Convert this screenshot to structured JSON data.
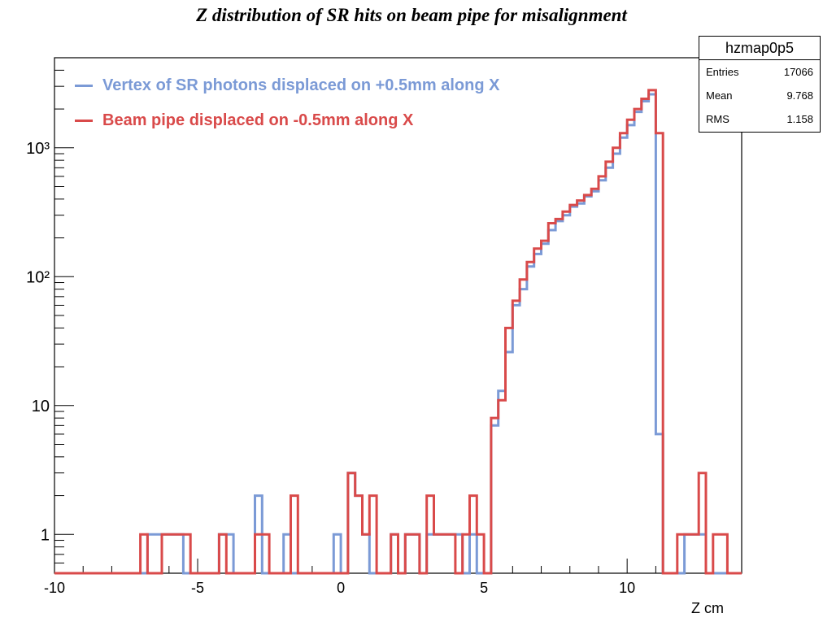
{
  "title": "Z distribution of SR hits on beam pipe for misalignment",
  "stats": {
    "name": "hzmap0p5",
    "rows": [
      {
        "label": "Entries",
        "value": "17066"
      },
      {
        "label": "Mean",
        "value": "9.768"
      },
      {
        "label": "RMS",
        "value": "1.158"
      }
    ]
  },
  "legend": [
    {
      "label": "Vertex of SR photons displaced on +0.5mm along X",
      "color": "#7b9ad6"
    },
    {
      "label": "Beam pipe displaced on -0.5mm along X",
      "color": "#d94a4a"
    }
  ],
  "chart_data": {
    "type": "histogram",
    "title": "Z distribution of SR hits on beam pipe for misalignment",
    "xlabel": "Z cm",
    "ylabel": "",
    "xlim": [
      -10,
      14
    ],
    "ylim": [
      0.5,
      5000
    ],
    "yscale": "log",
    "xticks": [
      -10,
      -5,
      0,
      5,
      10
    ],
    "xtick_labels": [
      "-10",
      "-5",
      "0",
      "5",
      "10"
    ],
    "yticks": [
      1,
      10,
      100,
      1000
    ],
    "ytick_labels": [
      "1",
      "10",
      "10²",
      "10³"
    ],
    "legend_position": "top-left",
    "series": [
      {
        "name": "Vertex of SR photons displaced on +0.5mm along X",
        "color": "#7b9ad6",
        "points": [
          [
            -10,
            0
          ],
          [
            -6.75,
            1
          ],
          [
            -6.25,
            1
          ],
          [
            -5.5,
            0
          ],
          [
            -4.25,
            1
          ],
          [
            -3.75,
            0
          ],
          [
            -3,
            2
          ],
          [
            -2.75,
            0
          ],
          [
            -2,
            1
          ],
          [
            -1.75,
            0
          ],
          [
            -0.25,
            1
          ],
          [
            0,
            0
          ],
          [
            0.25,
            3
          ],
          [
            0.5,
            2
          ],
          [
            0.75,
            1
          ],
          [
            1,
            0
          ],
          [
            1.75,
            1
          ],
          [
            2,
            0
          ],
          [
            2.25,
            1
          ],
          [
            2.75,
            0
          ],
          [
            3,
            1
          ],
          [
            3.25,
            1
          ],
          [
            3.5,
            1
          ],
          [
            4.25,
            0
          ],
          [
            4.5,
            1
          ],
          [
            4.75,
            0
          ],
          [
            5.25,
            7
          ],
          [
            5.5,
            13
          ],
          [
            5.75,
            26
          ],
          [
            6,
            60
          ],
          [
            6.25,
            80
          ],
          [
            6.5,
            120
          ],
          [
            6.75,
            150
          ],
          [
            7,
            180
          ],
          [
            7.25,
            230
          ],
          [
            7.5,
            270
          ],
          [
            7.75,
            300
          ],
          [
            8,
            350
          ],
          [
            8.25,
            370
          ],
          [
            8.5,
            420
          ],
          [
            8.75,
            460
          ],
          [
            9,
            560
          ],
          [
            9.25,
            700
          ],
          [
            9.5,
            900
          ],
          [
            9.75,
            1200
          ],
          [
            10,
            1500
          ],
          [
            10.25,
            1900
          ],
          [
            10.5,
            2300
          ],
          [
            10.75,
            2600
          ],
          [
            11,
            6
          ],
          [
            11.25,
            0
          ],
          [
            12,
            1
          ],
          [
            12.25,
            1
          ],
          [
            12.5,
            1
          ],
          [
            12.75,
            0
          ],
          [
            14,
            0
          ]
        ]
      },
      {
        "name": "Beam pipe displaced on -0.5mm along X",
        "color": "#d94a4a",
        "points": [
          [
            -10,
            0
          ],
          [
            -7,
            1
          ],
          [
            -6.75,
            0
          ],
          [
            -6.25,
            1
          ],
          [
            -5.25,
            0
          ],
          [
            -4.25,
            1
          ],
          [
            -4,
            0
          ],
          [
            -3,
            1
          ],
          [
            -2.5,
            0
          ],
          [
            -1.75,
            2
          ],
          [
            -1.5,
            0
          ],
          [
            0.25,
            3
          ],
          [
            0.5,
            2
          ],
          [
            0.75,
            1
          ],
          [
            1,
            2
          ],
          [
            1.25,
            0
          ],
          [
            1.75,
            1
          ],
          [
            2,
            0
          ],
          [
            2.25,
            1
          ],
          [
            2.75,
            0
          ],
          [
            3,
            2
          ],
          [
            3.25,
            1
          ],
          [
            4,
            0
          ],
          [
            4.25,
            1
          ],
          [
            4.5,
            2
          ],
          [
            4.75,
            1
          ],
          [
            5,
            0
          ],
          [
            5.25,
            8
          ],
          [
            5.5,
            11
          ],
          [
            5.75,
            40
          ],
          [
            6,
            65
          ],
          [
            6.25,
            95
          ],
          [
            6.5,
            130
          ],
          [
            6.75,
            165
          ],
          [
            7,
            190
          ],
          [
            7.25,
            260
          ],
          [
            7.5,
            280
          ],
          [
            7.75,
            320
          ],
          [
            8,
            360
          ],
          [
            8.25,
            390
          ],
          [
            8.5,
            430
          ],
          [
            8.75,
            480
          ],
          [
            9,
            600
          ],
          [
            9.25,
            780
          ],
          [
            9.5,
            1000
          ],
          [
            9.75,
            1300
          ],
          [
            10,
            1650
          ],
          [
            10.25,
            2000
          ],
          [
            10.5,
            2400
          ],
          [
            10.75,
            2800
          ],
          [
            11,
            1300
          ],
          [
            11.25,
            0
          ],
          [
            11.75,
            1
          ],
          [
            12.5,
            3
          ],
          [
            12.75,
            0
          ],
          [
            13,
            1
          ],
          [
            13.5,
            0
          ],
          [
            14,
            0
          ]
        ]
      }
    ]
  }
}
